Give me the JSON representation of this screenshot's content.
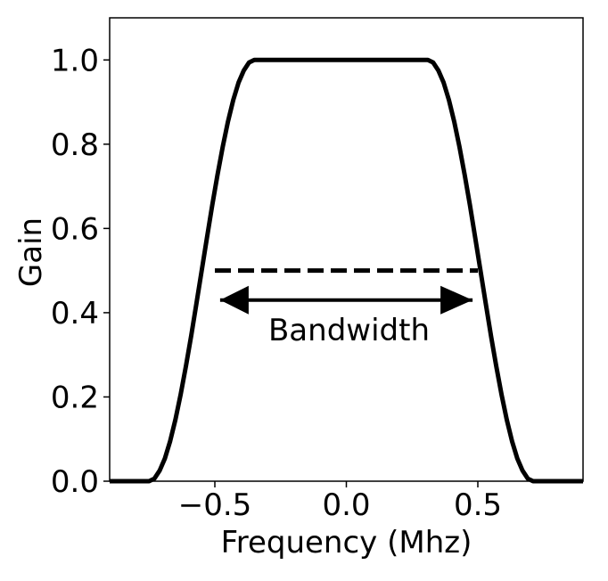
{
  "chart_data": {
    "type": "line",
    "title": "",
    "xlabel": "Frequency (Mhz)",
    "ylabel": "Gain",
    "xlim": [
      -0.9,
      0.9
    ],
    "ylim": [
      0.0,
      1.1
    ],
    "x_ticks": [
      -0.5,
      0.0,
      0.5
    ],
    "x_tick_labels": [
      "−0.5",
      "0.0",
      "0.5"
    ],
    "y_ticks": [
      0.0,
      0.2,
      0.4,
      0.6,
      0.8,
      1.0
    ],
    "y_tick_labels": [
      "0.0",
      "0.2",
      "0.4",
      "0.6",
      "0.8",
      "1.0"
    ],
    "grid": false,
    "series": [
      {
        "style": "solid",
        "color": "#000000",
        "x": [
          -0.9,
          -0.75,
          -0.73,
          -0.71,
          -0.69,
          -0.67,
          -0.65,
          -0.63,
          -0.61,
          -0.59,
          -0.57,
          -0.55,
          -0.53,
          -0.51,
          -0.49,
          -0.47,
          -0.45,
          -0.43,
          -0.41,
          -0.39,
          -0.37,
          -0.35,
          -0.33,
          -0.31,
          -0.29,
          -0.27,
          -0.25,
          0.25,
          0.27,
          0.29,
          0.31,
          0.33,
          0.35,
          0.37,
          0.39,
          0.41,
          0.43,
          0.45,
          0.47,
          0.49,
          0.51,
          0.53,
          0.55,
          0.57,
          0.59,
          0.61,
          0.63,
          0.65,
          0.67,
          0.69,
          0.71,
          0.73,
          0.75,
          0.9
        ],
        "y": [
          0.0,
          0.0,
          0.006,
          0.025,
          0.054,
          0.095,
          0.146,
          0.206,
          0.273,
          0.345,
          0.422,
          0.5,
          0.578,
          0.655,
          0.727,
          0.794,
          0.854,
          0.905,
          0.946,
          0.975,
          0.994,
          1.0,
          1.0,
          1.0,
          1.0,
          1.0,
          1.0,
          1.0,
          1.0,
          1.0,
          1.0,
          0.994,
          0.975,
          0.946,
          0.905,
          0.854,
          0.794,
          0.727,
          0.655,
          0.578,
          0.5,
          0.422,
          0.345,
          0.273,
          0.206,
          0.146,
          0.095,
          0.054,
          0.025,
          0.006,
          0.0,
          0.0,
          0.0,
          0.0
        ]
      },
      {
        "style": "dashed",
        "color": "#000000",
        "x": [
          -0.5,
          0.5
        ],
        "y": [
          0.5,
          0.5
        ]
      }
    ],
    "annotations": [
      {
        "type": "double-arrow",
        "x_start": -0.48,
        "x_end": 0.48,
        "y": 0.43,
        "label": "Bandwidth",
        "label_x": 0.0,
        "label_y": 0.36
      }
    ]
  }
}
